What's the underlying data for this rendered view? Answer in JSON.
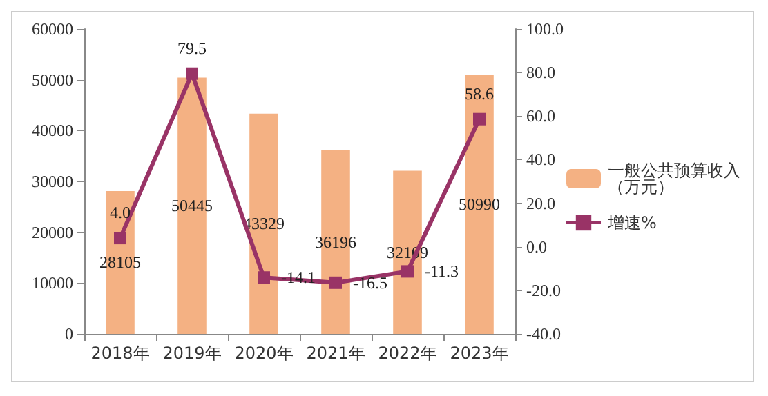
{
  "chart_data": {
    "type": "bar",
    "categories": [
      "2018年",
      "2019年",
      "2020年",
      "2021年",
      "2022年",
      "2023年"
    ],
    "series": [
      {
        "name": "一般公共预算收入（万元）",
        "color": "#f4b183",
        "values": [
          28105,
          50445,
          43329,
          36196,
          32109,
          50990
        ]
      },
      {
        "name": "增速%",
        "type": "line",
        "axis": "y2",
        "color": "#993366",
        "values": [
          4.0,
          79.5,
          -14.1,
          -16.5,
          -11.3,
          58.6
        ],
        "value_labels": [
          "4.0",
          "79.5",
          "-14.1",
          "-16.5",
          "-11.3",
          "58.6"
        ]
      }
    ],
    "data_labels": true,
    "ylim": [
      0,
      60000
    ],
    "yticks": [
      0,
      10000,
      20000,
      30000,
      40000,
      50000,
      60000
    ],
    "y2lim": [
      -40,
      100
    ],
    "y2ticks": [
      {
        "value": -40,
        "label": "-40.0"
      },
      {
        "value": -20,
        "label": "-20.0"
      },
      {
        "value": 0,
        "label": "0.0"
      },
      {
        "value": 20,
        "label": "20.0"
      },
      {
        "value": 40,
        "label": "40.0"
      },
      {
        "value": 60,
        "label": "60.0"
      },
      {
        "value": 80,
        "label": "80.0"
      },
      {
        "value": 100,
        "label": "100.0"
      }
    ],
    "grid": false,
    "legend": "right",
    "marker": "square",
    "line_style": "solid"
  }
}
